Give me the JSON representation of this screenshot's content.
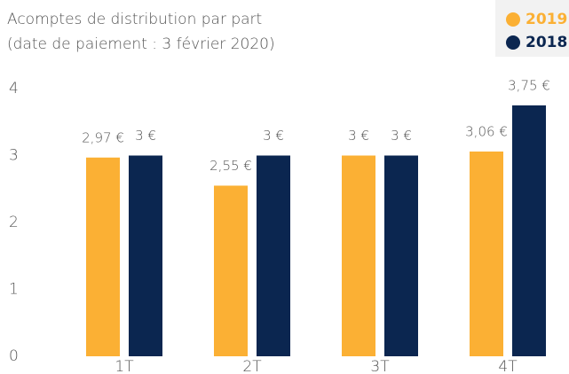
{
  "chart_data": {
    "type": "bar",
    "title": "Acomptes de distribution par part",
    "subtitle": "(date de paiement : 3 février 2020)",
    "categories": [
      "1T",
      "2T",
      "3T",
      "4T"
    ],
    "series": [
      {
        "name": "2019",
        "color": "#fbb034",
        "values": [
          2.97,
          2.55,
          3,
          3.06
        ],
        "value_labels": [
          "2,97 €",
          "2,55 €",
          "3 €",
          "3,06 €"
        ]
      },
      {
        "name": "2018",
        "color": "#0b2650",
        "values": [
          3,
          3,
          3,
          3.75
        ],
        "value_labels": [
          "3 €",
          "3 €",
          "3 €",
          "3,75 €"
        ]
      }
    ],
    "ylim": [
      0,
      4
    ],
    "yticks": [
      0,
      1,
      2,
      3,
      4
    ],
    "grid": false,
    "legend": "top-right"
  }
}
